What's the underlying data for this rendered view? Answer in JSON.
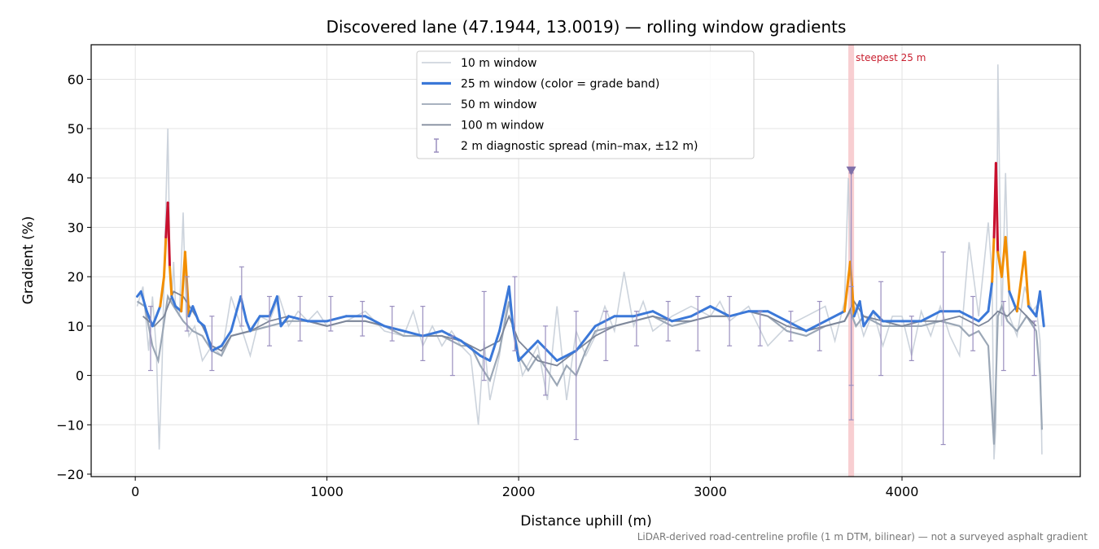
{
  "chart_data": {
    "type": "line",
    "title": "Discovered lane (47.1944, 13.0019) — rolling window gradients",
    "xlabel": "Distance uphill (m)",
    "ylabel": "Gradient (%)",
    "xlim": [
      -230,
      4930
    ],
    "ylim": [
      -20.5,
      67
    ],
    "xticks": [
      0,
      1000,
      2000,
      3000,
      4000
    ],
    "xtick_labels": [
      "0",
      "1000",
      "2000",
      "3000",
      "4000"
    ],
    "yticks": [
      -20,
      -10,
      0,
      10,
      20,
      30,
      40,
      50,
      60
    ],
    "ytick_labels": [
      "−20",
      "−10",
      "0",
      "10",
      "20",
      "30",
      "40",
      "50",
      "60"
    ],
    "grid": true,
    "legend_position": "upper-center",
    "footnote": "LiDAR-derived road-centreline profile (1 m DTM, bilinear) — not a surveyed asphalt gradient",
    "series": [
      {
        "name": "10 m window",
        "color": "#c7ced8",
        "x": [
          10,
          40,
          70,
          90,
          110,
          125,
          140,
          155,
          170,
          180,
          190,
          200,
          210,
          230,
          250,
          265,
          280,
          310,
          350,
          400,
          450,
          500,
          550,
          600,
          650,
          700,
          750,
          800,
          850,
          900,
          950,
          1000,
          1100,
          1200,
          1300,
          1400,
          1450,
          1500,
          1550,
          1600,
          1650,
          1700,
          1750,
          1790,
          1820,
          1850,
          1900,
          1950,
          1980,
          2020,
          2100,
          2150,
          2200,
          2250,
          2300,
          2350,
          2400,
          2450,
          2500,
          2550,
          2600,
          2650,
          2700,
          2800,
          2900,
          3000,
          3050,
          3100,
          3200,
          3300,
          3400,
          3500,
          3600,
          3650,
          3700,
          3720,
          3740,
          3760,
          3800,
          3850,
          3900,
          3950,
          4000,
          4050,
          4100,
          4150,
          4200,
          4250,
          4300,
          4350,
          4400,
          4450,
          4470,
          4480,
          4490,
          4500,
          4520,
          4540,
          4560,
          4600,
          4640,
          4680,
          4700,
          4720,
          4730
        ],
        "y": [
          14,
          18,
          5,
          16,
          5,
          -15,
          2,
          28,
          50,
          25,
          15,
          23,
          14,
          12,
          33,
          12,
          8,
          10,
          3,
          6,
          4,
          16,
          10,
          4,
          12,
          11,
          16,
          10,
          13,
          11,
          13,
          10,
          11,
          13,
          9,
          8,
          13,
          6,
          10,
          6,
          9,
          6,
          4,
          -10,
          7,
          -5,
          4,
          18,
          8,
          0,
          6,
          -5,
          14,
          -5,
          9,
          4,
          8,
          14,
          9,
          21,
          10,
          15,
          9,
          12,
          14,
          12,
          15,
          11,
          14,
          6,
          10,
          12,
          14,
          7,
          15,
          40,
          12,
          14,
          8,
          13,
          6,
          12,
          12,
          4,
          13,
          8,
          14,
          8,
          4,
          27,
          12,
          31,
          20,
          -17,
          -10,
          63,
          10,
          41,
          12,
          8,
          18,
          13,
          14,
          7,
          -16
        ]
      },
      {
        "name": "25 m window (color = grade band)",
        "color": "#3b78d8",
        "band_colors": {
          "moderate": "#3b78d8",
          "steep": "#f28e00",
          "very_steep": "#c8102e"
        },
        "x": [
          10,
          30,
          60,
          90,
          110,
          130,
          150,
          160,
          170,
          180,
          190,
          210,
          240,
          260,
          280,
          300,
          330,
          360,
          400,
          450,
          500,
          550,
          580,
          600,
          650,
          700,
          740,
          760,
          800,
          900,
          1000,
          1100,
          1200,
          1300,
          1400,
          1500,
          1600,
          1700,
          1800,
          1850,
          1900,
          1950,
          1970,
          2000,
          2100,
          2200,
          2300,
          2400,
          2500,
          2600,
          2700,
          2800,
          2900,
          3000,
          3100,
          3200,
          3300,
          3400,
          3500,
          3600,
          3700,
          3730,
          3750,
          3780,
          3800,
          3850,
          3900,
          4000,
          4100,
          4200,
          4300,
          4350,
          4400,
          4450,
          4470,
          4480,
          4490,
          4500,
          4520,
          4540,
          4560,
          4600,
          4640,
          4660,
          4700,
          4720,
          4740
        ],
        "y": [
          16,
          17,
          13,
          10,
          12,
          14,
          20,
          28,
          35,
          22,
          16,
          14,
          13,
          25,
          12,
          14,
          11,
          10,
          5,
          6,
          9,
          16,
          11,
          9,
          12,
          12,
          16,
          10,
          12,
          11,
          11,
          12,
          12,
          10,
          9,
          8,
          9,
          7,
          4,
          3,
          9,
          18,
          10,
          3,
          7,
          3,
          5,
          10,
          12,
          12,
          13,
          11,
          12,
          14,
          12,
          13,
          13,
          11,
          9,
          11,
          13,
          23,
          12,
          15,
          10,
          13,
          11,
          11,
          11,
          13,
          13,
          12,
          11,
          13,
          19,
          28,
          43,
          25,
          20,
          28,
          17,
          13,
          25,
          14,
          12,
          17,
          10
        ]
      },
      {
        "name": "50 m window",
        "color": "#9ba7b6",
        "x": [
          10,
          50,
          90,
          120,
          140,
          170,
          200,
          250,
          300,
          350,
          400,
          450,
          500,
          600,
          700,
          800,
          900,
          1000,
          1100,
          1200,
          1300,
          1400,
          1500,
          1600,
          1700,
          1750,
          1800,
          1850,
          1900,
          1950,
          2000,
          2050,
          2100,
          2200,
          2250,
          2300,
          2350,
          2400,
          2500,
          2600,
          2700,
          2800,
          2900,
          3000,
          3100,
          3200,
          3300,
          3400,
          3500,
          3600,
          3700,
          3730,
          3760,
          3800,
          3900,
          4000,
          4100,
          4200,
          4300,
          4350,
          4400,
          4450,
          4480,
          4500,
          4520,
          4550,
          4600,
          4650,
          4700,
          4720,
          4730
        ],
        "y": [
          15,
          14,
          6,
          3,
          8,
          16,
          14,
          11,
          9,
          8,
          5,
          4,
          8,
          9,
          10,
          11,
          11,
          10,
          11,
          11,
          10,
          8,
          8,
          8,
          6,
          6,
          2,
          -1,
          5,
          15,
          4,
          1,
          4,
          -2,
          2,
          0,
          5,
          9,
          10,
          11,
          12,
          10,
          11,
          12,
          12,
          13,
          12,
          9,
          8,
          10,
          11,
          13,
          10,
          12,
          10,
          10,
          10,
          11,
          10,
          8,
          9,
          6,
          -14,
          12,
          14,
          11,
          9,
          12,
          9,
          0,
          -11
        ]
      },
      {
        "name": "100 m window",
        "color": "#7d8699",
        "x": [
          40,
          100,
          150,
          200,
          250,
          300,
          350,
          400,
          450,
          500,
          600,
          700,
          800,
          900,
          1000,
          1100,
          1200,
          1300,
          1400,
          1500,
          1600,
          1700,
          1800,
          1900,
          1950,
          2000,
          2100,
          2200,
          2300,
          2400,
          2500,
          2600,
          2700,
          2800,
          2900,
          3000,
          3100,
          3200,
          3300,
          3400,
          3500,
          3600,
          3700,
          3750,
          3800,
          3900,
          4000,
          4100,
          4200,
          4300,
          4400,
          4450,
          4500,
          4550,
          4600,
          4650,
          4700
        ],
        "y": [
          12,
          10,
          12,
          17,
          16,
          13,
          10,
          6,
          5,
          8,
          9,
          11,
          12,
          11,
          10,
          11,
          11,
          10,
          9,
          8,
          8,
          7,
          5,
          7,
          12,
          7,
          3,
          2,
          5,
          8,
          10,
          11,
          12,
          11,
          11,
          12,
          12,
          13,
          12,
          10,
          9,
          10,
          11,
          15,
          12,
          11,
          10,
          11,
          11,
          12,
          10,
          11,
          13,
          12,
          14,
          12,
          10
        ]
      },
      {
        "name": "2 m diagnostic spread (min–max, ±12 m)",
        "color": "#9a8fbf",
        "type": "errorbar",
        "points": [
          {
            "x": 80,
            "min": 1,
            "max": 14
          },
          {
            "x": 270,
            "min": 9,
            "max": 20
          },
          {
            "x": 400,
            "min": 1,
            "max": 12
          },
          {
            "x": 555,
            "min": 10,
            "max": 22
          },
          {
            "x": 700,
            "min": 6,
            "max": 16
          },
          {
            "x": 860,
            "min": 7,
            "max": 16
          },
          {
            "x": 1020,
            "min": 9,
            "max": 16
          },
          {
            "x": 1185,
            "min": 8,
            "max": 15
          },
          {
            "x": 1340,
            "min": 7,
            "max": 14
          },
          {
            "x": 1500,
            "min": 3,
            "max": 14
          },
          {
            "x": 1655,
            "min": 0,
            "max": 8
          },
          {
            "x": 1820,
            "min": -1,
            "max": 17
          },
          {
            "x": 1980,
            "min": 5,
            "max": 20
          },
          {
            "x": 2140,
            "min": -4,
            "max": 10
          },
          {
            "x": 2300,
            "min": -13,
            "max": 13
          },
          {
            "x": 2455,
            "min": 3,
            "max": 13
          },
          {
            "x": 2615,
            "min": 6,
            "max": 13
          },
          {
            "x": 2780,
            "min": 7,
            "max": 15
          },
          {
            "x": 2935,
            "min": 5,
            "max": 16
          },
          {
            "x": 3100,
            "min": 6,
            "max": 16
          },
          {
            "x": 3260,
            "min": 6,
            "max": 13
          },
          {
            "x": 3420,
            "min": 7,
            "max": 13
          },
          {
            "x": 3570,
            "min": 5,
            "max": 15
          },
          {
            "x": 3735,
            "min": -2,
            "max": 18
          },
          {
            "x": 3735,
            "min": -9,
            "max": 41
          },
          {
            "x": 3890,
            "min": 0,
            "max": 19
          },
          {
            "x": 4050,
            "min": 3,
            "max": 12
          },
          {
            "x": 4215,
            "min": -14,
            "max": 25
          },
          {
            "x": 4370,
            "min": 5,
            "max": 16
          },
          {
            "x": 4530,
            "min": 1,
            "max": 15
          },
          {
            "x": 4690,
            "min": 0,
            "max": 11
          }
        ]
      }
    ],
    "annotations": [
      {
        "type": "vspan",
        "x0": 3720,
        "x1": 3750,
        "color": "#f7c6c9",
        "label": "steepest 25 m"
      },
      {
        "type": "marker",
        "shape": "triangle-down",
        "x": 3735,
        "y": 41.5,
        "color": "#7f6fa8"
      }
    ]
  }
}
